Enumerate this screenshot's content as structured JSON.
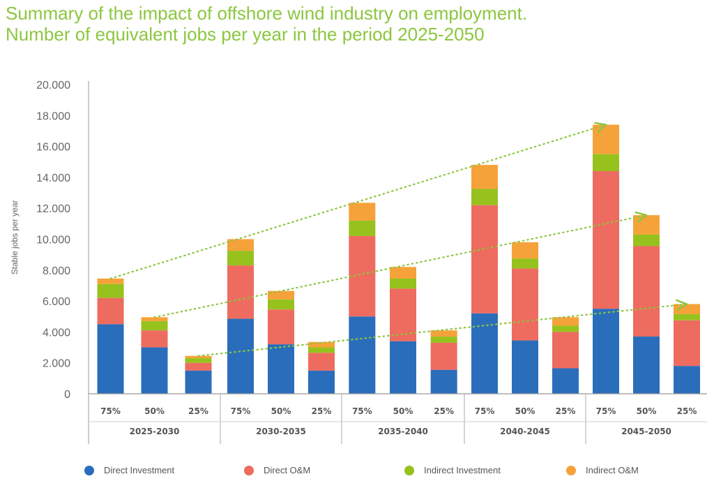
{
  "title_line1": "Summary of the impact of offshore wind industry on employment.",
  "title_line2": "Number of equivalent jobs per year in the period 2025-2050",
  "chart_data": {
    "type": "bar",
    "stacked": true,
    "ylabel": "Stable jobs per year",
    "ylim": [
      0,
      20000
    ],
    "yticks": [
      0,
      2000,
      4000,
      6000,
      8000,
      10000,
      12000,
      14000,
      16000,
      18000,
      20000
    ],
    "ytick_labels": [
      "0",
      "2.000",
      "4.000",
      "6.000",
      "8.000",
      "10.000",
      "12.000",
      "14.000",
      "16.000",
      "18.000",
      "20.000"
    ],
    "groups": [
      "2025-2030",
      "2030-2035",
      "2035-2040",
      "2040-2045",
      "2045-2050"
    ],
    "scenarios": [
      "75%",
      "50%",
      "25%"
    ],
    "categories": [
      "75%",
      "50%",
      "25%",
      "75%",
      "50%",
      "25%",
      "75%",
      "50%",
      "25%",
      "75%",
      "50%",
      "25%",
      "75%",
      "50%",
      "25%"
    ],
    "series": [
      {
        "name": "Direct Investment",
        "color": "#2a6ebb",
        "values": [
          4500,
          3000,
          1500,
          4850,
          3200,
          1500,
          5000,
          3400,
          1550,
          5200,
          3450,
          1650,
          5500,
          3700,
          1800
        ]
      },
      {
        "name": "Direct O&M",
        "color": "#ee6b5f",
        "values": [
          1700,
          1100,
          500,
          3450,
          2250,
          1150,
          5200,
          3400,
          1750,
          7000,
          4650,
          2350,
          8900,
          5850,
          2950
        ]
      },
      {
        "name": "Indirect Investment",
        "color": "#97c21e",
        "values": [
          900,
          600,
          300,
          950,
          650,
          350,
          1000,
          650,
          400,
          1050,
          650,
          400,
          1100,
          750,
          400
        ]
      },
      {
        "name": "Indirect O&M",
        "color": "#f6a23a",
        "values": [
          350,
          250,
          150,
          750,
          550,
          350,
          1150,
          750,
          400,
          1550,
          1050,
          550,
          1900,
          1250,
          650
        ]
      }
    ],
    "trend_lines": [
      {
        "scenario": "75%",
        "values": [
          7450,
          9950,
          12350,
          14800,
          17400
        ]
      },
      {
        "scenario": "50%",
        "values": [
          4950,
          6650,
          8200,
          9800,
          11550
        ]
      },
      {
        "scenario": "25%",
        "values": [
          2450,
          3350,
          4100,
          4950,
          5800
        ]
      }
    ],
    "trend_color": "#8cc63f",
    "legend_position": "bottom",
    "grid": false
  }
}
